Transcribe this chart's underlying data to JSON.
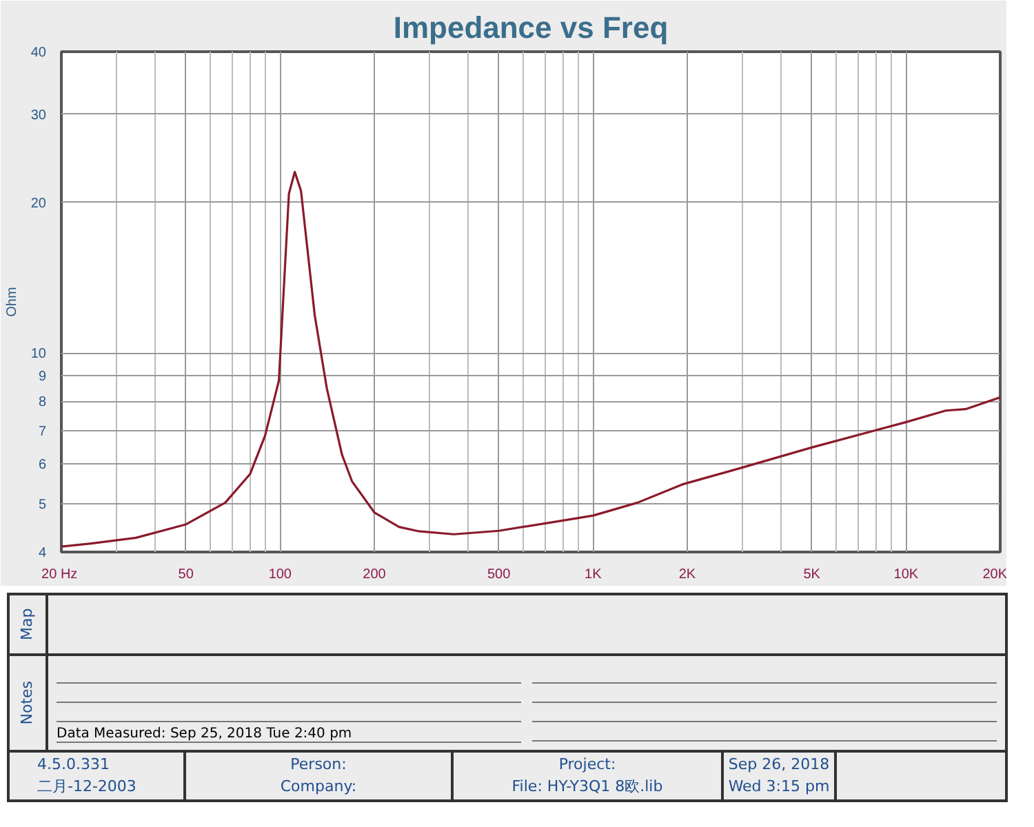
{
  "chart_data": {
    "type": "line",
    "title": "Impedance vs Freq",
    "ylabel": "Ohm",
    "x": [
      20,
      24.9,
      34.6,
      49.9,
      66.8,
      80.2,
      89.5,
      99.1,
      106.7,
      111.4,
      116.6,
      129,
      141,
      157.7,
      169.7,
      200,
      240,
      278,
      359,
      499,
      745,
      1000,
      1387,
      1928,
      2884,
      4990,
      9980,
      13400,
      15500,
      20000
    ],
    "series": [
      {
        "color": "#8b1a2b",
        "values": [
          4.1,
          4.16,
          4.27,
          4.54,
          5.02,
          5.73,
          6.83,
          8.8,
          20.8,
          23.0,
          21.1,
          11.9,
          8.5,
          6.26,
          5.54,
          4.8,
          4.49,
          4.4,
          4.34,
          4.41,
          4.59,
          4.73,
          5.02,
          5.46,
          5.86,
          6.47,
          7.27,
          7.67,
          7.72,
          8.15
        ]
      }
    ],
    "log": "xy",
    "xlim": [
      20,
      20000
    ],
    "ylim": [
      4,
      40
    ],
    "xticks": [
      {
        "value": 20,
        "label": "20  Hz"
      },
      50,
      100,
      200,
      500,
      {
        "value": 1000,
        "label": "1K"
      },
      {
        "value": 2000,
        "label": "2K"
      },
      {
        "value": 5000,
        "label": "5K"
      },
      {
        "value": 10000,
        "label": "10K"
      },
      {
        "value": 20000,
        "label": "20K"
      }
    ],
    "yticks": [
      4,
      5,
      6,
      7,
      8,
      9,
      10,
      20,
      30,
      40
    ],
    "grid": true,
    "line_style": "solid",
    "marker": "none",
    "annotations": [
      "Map",
      "Notes",
      "Data Measured: Sep 25, 2018  Tue  2:40 pm",
      "4.5.0.331",
      "二月-12-2003",
      "Person:",
      "Company:",
      "Project:",
      "File: HY-Y3Q1 8欧.lib",
      "Sep 26, 2018",
      "Wed  3:15 pm"
    ]
  }
}
